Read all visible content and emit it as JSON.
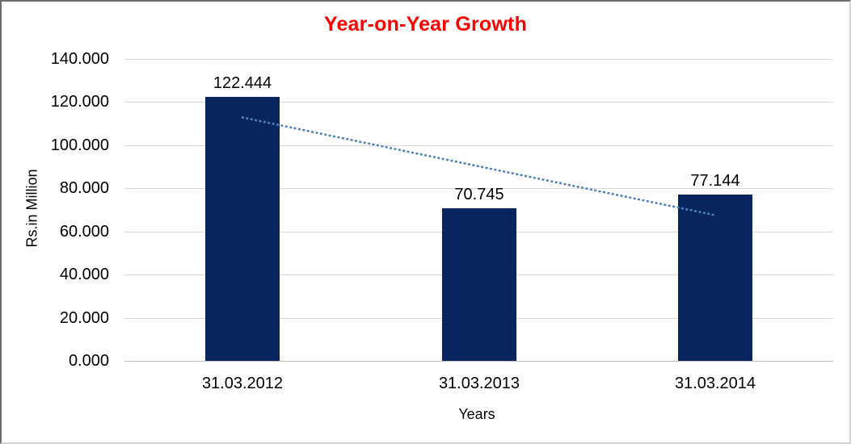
{
  "window": {
    "background": "#ffffff",
    "border_top_left_color": "#6d6d6d",
    "border_bottom_right_color": "#d4d4d4"
  },
  "chart_data": {
    "type": "bar",
    "title": "Year-on-Year Growth",
    "title_color": "#ff0000",
    "xlabel": "Years",
    "ylabel": "Rs.in Million",
    "categories": [
      "31.03.2012",
      "31.03.2013",
      "31.03.2014"
    ],
    "values": [
      122.444,
      70.745,
      77.144
    ],
    "data_labels": [
      "122.444",
      "70.745",
      "77.144"
    ],
    "ylim": [
      0,
      140
    ],
    "ytick_step": 20,
    "ytick_labels": [
      "0.000",
      "20.000",
      "40.000",
      "60.000",
      "80.000",
      "100.000",
      "120.000",
      "140.000"
    ],
    "grid": true,
    "gridline_color": "#d9d9d9",
    "axis_line_color": "#bfbfbf",
    "legend": "none",
    "bar_color": "#08255f",
    "text_color": "#000000",
    "trendline": {
      "type": "linear",
      "style": "dotted",
      "color": "#4f81bd",
      "start_value": 112.85,
      "end_value": 67.55
    }
  }
}
